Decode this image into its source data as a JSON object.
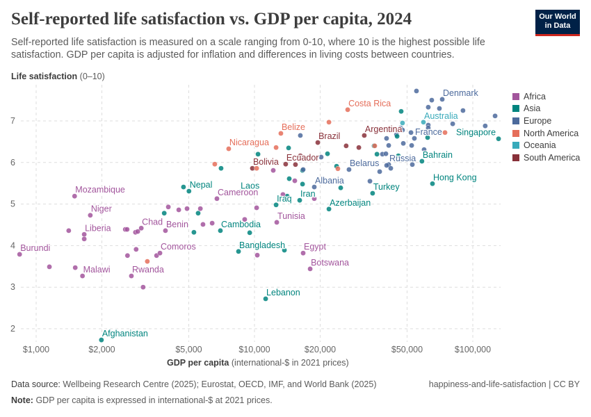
{
  "header": {
    "title": "Self-reported life satisfaction vs. GDP per capita, 2024",
    "subtitle": "Self-reported life satisfaction is measured on a scale ranging from 0-10, where 10 is the highest possible life satisfaction. GDP per capita is adjusted for inflation and differences in living costs between countries.",
    "logo_text": "Our World in Data"
  },
  "footer": {
    "source_label": "Data source:",
    "source_text": "Wellbeing Research Centre (2025); Eurostat, OECD, IMF, and World Bank (2025)",
    "note_label": "Note:",
    "note_text": "GDP per capita is expressed in international-$ at 2021 prices.",
    "right_text": "happiness-and-life-satisfaction | CC BY"
  },
  "chart_data": {
    "type": "scatter",
    "title": "Self-reported life satisfaction vs. GDP per capita, 2024",
    "xlabel_bold": "GDP per capita",
    "xlabel_rest": "(international-$ in 2021 prices)",
    "ylabel_bold": "Life satisfaction",
    "ylabel_rest": "(0–10)",
    "x_scale": "log",
    "xlim": [
      800,
      140000
    ],
    "ylim": [
      1.7,
      7.8
    ],
    "x_ticks": [
      1000,
      2000,
      5000,
      10000,
      20000,
      50000,
      100000
    ],
    "x_tick_labels": [
      "$1,000",
      "$2,000",
      "$5,000",
      "$10,000",
      "$20,000",
      "$50,000",
      "$100,000"
    ],
    "y_ticks": [
      2,
      3,
      4,
      5,
      6,
      7
    ],
    "y_tick_labels": [
      "2",
      "3",
      "4",
      "5",
      "6",
      "7"
    ],
    "grid": true,
    "legend_placement": "right",
    "regions": [
      {
        "name": "Africa",
        "color": "#a2559c"
      },
      {
        "name": "Asia",
        "color": "#00847e"
      },
      {
        "name": "Europe",
        "color": "#4c6a9c"
      },
      {
        "name": "North America",
        "color": "#e56e5a"
      },
      {
        "name": "Oceania",
        "color": "#38aaba"
      },
      {
        "name": "South America",
        "color": "#883039"
      }
    ],
    "points": [
      {
        "label": "Burundi",
        "region": "Africa",
        "x": 840,
        "y": 3.79
      },
      {
        "region": "Africa",
        "x": 1150,
        "y": 3.49
      },
      {
        "region": "Africa",
        "x": 1410,
        "y": 4.36
      },
      {
        "label": "Mozambique",
        "region": "Africa",
        "x": 1500,
        "y": 5.19
      },
      {
        "region": "Africa",
        "x": 1510,
        "y": 3.47
      },
      {
        "label": "Malawi",
        "region": "Africa",
        "x": 1630,
        "y": 3.27
      },
      {
        "label": "Liberia",
        "region": "Africa",
        "x": 1660,
        "y": 4.27
      },
      {
        "region": "Africa",
        "x": 1660,
        "y": 4.16
      },
      {
        "label": "Niger",
        "region": "Africa",
        "x": 1770,
        "y": 4.73
      },
      {
        "label": "Afghanistan",
        "region": "Asia",
        "x": 1990,
        "y": 1.73
      },
      {
        "region": "Africa",
        "x": 2560,
        "y": 4.39
      },
      {
        "region": "Africa",
        "x": 2610,
        "y": 4.39
      },
      {
        "region": "Africa",
        "x": 2620,
        "y": 3.76
      },
      {
        "label": "Rwanda",
        "region": "Africa",
        "x": 2730,
        "y": 3.27
      },
      {
        "region": "Africa",
        "x": 2850,
        "y": 4.32
      },
      {
        "region": "Africa",
        "x": 2920,
        "y": 4.34
      },
      {
        "label": "Chad",
        "region": "Africa",
        "x": 3030,
        "y": 4.42
      },
      {
        "region": "Africa",
        "x": 2870,
        "y": 3.91
      },
      {
        "region": "Africa",
        "x": 3090,
        "y": 3.0
      },
      {
        "region": "North America",
        "x": 3230,
        "y": 3.62
      },
      {
        "region": "Africa",
        "x": 3560,
        "y": 3.76
      },
      {
        "label": "Comoros",
        "region": "Africa",
        "x": 3690,
        "y": 3.82
      },
      {
        "region": "Asia",
        "x": 3860,
        "y": 4.78
      },
      {
        "label": "Benin",
        "region": "Africa",
        "x": 3910,
        "y": 4.36
      },
      {
        "region": "Africa",
        "x": 4030,
        "y": 4.93
      },
      {
        "region": "Africa",
        "x": 4500,
        "y": 4.86
      },
      {
        "region": "Asia",
        "x": 4730,
        "y": 5.41
      },
      {
        "label": "Nepal",
        "region": "Asia",
        "x": 5010,
        "y": 5.31
      },
      {
        "region": "Africa",
        "x": 4910,
        "y": 4.89
      },
      {
        "region": "Asia",
        "x": 5280,
        "y": 4.32
      },
      {
        "region": "Asia",
        "x": 5520,
        "y": 4.78
      },
      {
        "region": "Africa",
        "x": 5650,
        "y": 4.89
      },
      {
        "region": "Africa",
        "x": 5810,
        "y": 4.51
      },
      {
        "label": "Cameroon",
        "region": "Africa",
        "x": 6730,
        "y": 5.13
      },
      {
        "region": "Africa",
        "x": 6400,
        "y": 4.54
      },
      {
        "label": "Cambodia",
        "region": "Asia",
        "x": 6980,
        "y": 4.36
      },
      {
        "region": "Africa",
        "x": 9020,
        "y": 4.63
      },
      {
        "region": "Asia",
        "x": 9510,
        "y": 4.31
      },
      {
        "region": "Africa",
        "x": 10230,
        "y": 4.91
      },
      {
        "label": "Laos",
        "region": "Asia",
        "x": 8580,
        "y": 5.29
      },
      {
        "region": "North America",
        "x": 6580,
        "y": 5.96
      },
      {
        "region": "Asia",
        "x": 7030,
        "y": 5.86
      },
      {
        "label": "Nicaragua",
        "region": "North America",
        "x": 7620,
        "y": 6.33
      },
      {
        "region": "Asia",
        "x": 10380,
        "y": 6.2
      },
      {
        "label": "Bolivia",
        "region": "South America",
        "x": 9780,
        "y": 5.86
      },
      {
        "region": "North America",
        "x": 10230,
        "y": 5.86
      },
      {
        "region": "Africa",
        "x": 12190,
        "y": 5.81
      },
      {
        "label": "Belize",
        "region": "North America",
        "x": 13210,
        "y": 6.7
      },
      {
        "region": "North America",
        "x": 12560,
        "y": 6.36
      },
      {
        "region": "Asia",
        "x": 14330,
        "y": 6.35
      },
      {
        "region": "Europe",
        "x": 16220,
        "y": 6.65
      },
      {
        "label": "Ecuador",
        "region": "South America",
        "x": 13900,
        "y": 5.96
      },
      {
        "region": "South America",
        "x": 15410,
        "y": 5.95
      },
      {
        "region": "South America",
        "x": 16220,
        "y": 6.16
      },
      {
        "region": "Asia",
        "x": 16600,
        "y": 5.81
      },
      {
        "region": "Europe",
        "x": 16710,
        "y": 5.83
      },
      {
        "region": "Asia",
        "x": 14430,
        "y": 5.61
      },
      {
        "region": "Africa",
        "x": 15300,
        "y": 5.56
      },
      {
        "region": "Asia",
        "x": 16600,
        "y": 5.48
      },
      {
        "label": "Iran",
        "region": "Asia",
        "x": 16110,
        "y": 5.09
      },
      {
        "region": "Asia",
        "x": 14120,
        "y": 5.19
      },
      {
        "region": "Africa",
        "x": 13500,
        "y": 5.23
      },
      {
        "label": "Iraq",
        "region": "Asia",
        "x": 12560,
        "y": 4.98
      },
      {
        "label": "Tunisia",
        "region": "Africa",
        "x": 12650,
        "y": 4.56
      },
      {
        "label": "Bangladesh",
        "region": "Asia",
        "x": 8450,
        "y": 3.86
      },
      {
        "region": "Asia",
        "x": 13710,
        "y": 3.89
      },
      {
        "region": "Africa",
        "x": 10300,
        "y": 3.77
      },
      {
        "label": "Egypt",
        "region": "Africa",
        "x": 16710,
        "y": 3.82
      },
      {
        "label": "Botswana",
        "region": "Africa",
        "x": 17990,
        "y": 3.44
      },
      {
        "label": "Lebanon",
        "region": "Asia",
        "x": 11250,
        "y": 2.72
      },
      {
        "label": "Brazil",
        "region": "South America",
        "x": 19500,
        "y": 6.48
      },
      {
        "region": "Europe",
        "x": 20210,
        "y": 6.13
      },
      {
        "region": "North America",
        "x": 21930,
        "y": 6.97
      },
      {
        "label": "Costa Rica",
        "region": "North America",
        "x": 26730,
        "y": 7.27
      },
      {
        "region": "Asia",
        "x": 21600,
        "y": 6.21
      },
      {
        "label": "Albania",
        "region": "Europe",
        "x": 18790,
        "y": 5.41
      },
      {
        "region": "Africa",
        "x": 18790,
        "y": 5.13
      },
      {
        "label": "Azerbaijan",
        "region": "Asia",
        "x": 21930,
        "y": 4.88
      },
      {
        "region": "Asia",
        "x": 23770,
        "y": 5.91
      },
      {
        "region": "North America",
        "x": 24100,
        "y": 5.85
      },
      {
        "region": "Asia",
        "x": 24830,
        "y": 5.39
      },
      {
        "region": "South America",
        "x": 26300,
        "y": 6.4
      },
      {
        "label": "Belarus",
        "region": "Europe",
        "x": 27100,
        "y": 5.83
      },
      {
        "region": "South America",
        "x": 30060,
        "y": 6.36
      },
      {
        "label": "Argentina",
        "region": "South America",
        "x": 31840,
        "y": 6.65
      },
      {
        "region": "Europe",
        "x": 33790,
        "y": 5.55
      },
      {
        "label": "Turkey",
        "region": "Asia",
        "x": 34760,
        "y": 5.26
      },
      {
        "region": "Asia",
        "x": 35300,
        "y": 6.4
      },
      {
        "region": "North America",
        "x": 35560,
        "y": 6.4
      },
      {
        "region": "Europe",
        "x": 55200,
        "y": 7.72
      },
      {
        "region": "Asia",
        "x": 46980,
        "y": 7.23
      },
      {
        "region": "Oceania",
        "x": 47650,
        "y": 6.95
      },
      {
        "region": "Europe",
        "x": 64860,
        "y": 7.5
      },
      {
        "label": "Denmark",
        "region": "Europe",
        "x": 72440,
        "y": 7.52
      },
      {
        "region": "Europe",
        "x": 62520,
        "y": 7.33
      },
      {
        "region": "Europe",
        "x": 70310,
        "y": 7.3
      },
      {
        "region": "Europe",
        "x": 90180,
        "y": 7.25
      },
      {
        "region": "Europe",
        "x": 126500,
        "y": 7.12
      },
      {
        "region": "Europe",
        "x": 114000,
        "y": 6.88
      },
      {
        "region": "Europe",
        "x": 80900,
        "y": 6.93
      },
      {
        "label": "Australia",
        "region": "Oceania",
        "x": 59420,
        "y": 6.97
      },
      {
        "region": "Europe",
        "x": 62520,
        "y": 6.9
      },
      {
        "region": "Europe",
        "x": 62520,
        "y": 6.83
      },
      {
        "region": "North America",
        "x": 74590,
        "y": 6.72
      },
      {
        "region": "Asia",
        "x": 62090,
        "y": 6.6
      },
      {
        "label": "France",
        "region": "Europe",
        "x": 54000,
        "y": 6.58
      },
      {
        "region": "Europe",
        "x": 52100,
        "y": 6.72
      },
      {
        "region": "Europe",
        "x": 46660,
        "y": 6.83
      },
      {
        "region": "Europe",
        "x": 47650,
        "y": 6.78
      },
      {
        "region": "Europe",
        "x": 44700,
        "y": 6.67
      },
      {
        "region": "Asia",
        "x": 45000,
        "y": 6.63
      },
      {
        "region": "Europe",
        "x": 40270,
        "y": 6.58
      },
      {
        "region": "Europe",
        "x": 41190,
        "y": 6.41
      },
      {
        "region": "Europe",
        "x": 48050,
        "y": 6.46
      },
      {
        "region": "Europe",
        "x": 52480,
        "y": 6.41
      },
      {
        "label": "Singapore",
        "region": "Asia",
        "x": 131200,
        "y": 6.57
      },
      {
        "label": "Bahrain",
        "region": "Asia",
        "x": 58480,
        "y": 6.03
      },
      {
        "region": "Europe",
        "x": 59840,
        "y": 6.31
      },
      {
        "region": "Asia",
        "x": 36390,
        "y": 6.2
      },
      {
        "region": "Europe",
        "x": 38550,
        "y": 6.2
      },
      {
        "region": "Europe",
        "x": 39990,
        "y": 6.21
      },
      {
        "region": "Asia",
        "x": 45600,
        "y": 6.16
      },
      {
        "label": "Russia",
        "region": "Europe",
        "x": 41190,
        "y": 5.95
      },
      {
        "region": "Europe",
        "x": 40300,
        "y": 5.93
      },
      {
        "region": "Europe",
        "x": 42100,
        "y": 5.86
      },
      {
        "region": "Europe",
        "x": 52840,
        "y": 5.95
      },
      {
        "region": "Europe",
        "x": 37450,
        "y": 5.78
      },
      {
        "label": "Hong Kong",
        "region": "Asia",
        "x": 65350,
        "y": 5.49
      }
    ]
  }
}
